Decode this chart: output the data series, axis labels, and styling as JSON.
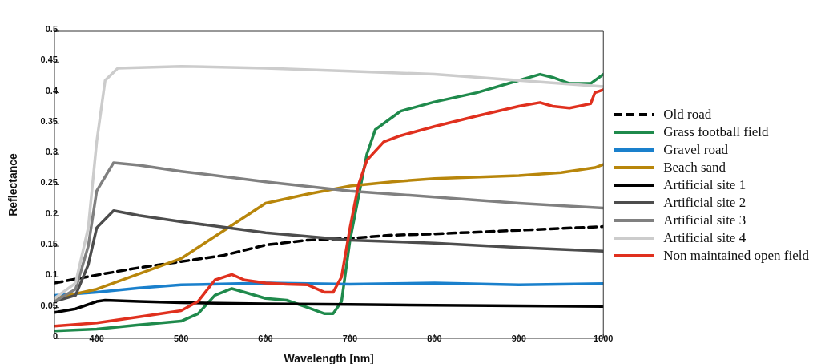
{
  "chart_data": {
    "type": "line",
    "xlabel": "Wavelength [nm]",
    "ylabel": "Reflectance",
    "xlim": [
      350,
      1000
    ],
    "ylim": [
      0,
      0.5
    ],
    "xticks": [
      400,
      500,
      600,
      700,
      800,
      900,
      1000
    ],
    "yticks": [
      0,
      0.05,
      0.1,
      0.15,
      0.2,
      0.25,
      0.3,
      0.35,
      0.4,
      0.45,
      0.5
    ],
    "grid": false,
    "legend": "right",
    "marker": "none",
    "series": [
      {
        "name": "Old road",
        "color": "#000000",
        "line_style": "dashed",
        "x": [
          350,
          400,
          450,
          500,
          550,
          600,
          650,
          700,
          750,
          800,
          900,
          1000
        ],
        "values": [
          0.09,
          0.103,
          0.115,
          0.125,
          0.135,
          0.152,
          0.16,
          0.163,
          0.168,
          0.17,
          0.176,
          0.182
        ]
      },
      {
        "name": "Grass football field",
        "color": "#1f8a4c",
        "x": [
          350,
          400,
          450,
          500,
          520,
          540,
          560,
          575,
          600,
          625,
          650,
          670,
          680,
          690,
          700,
          720,
          730,
          750,
          760,
          800,
          850,
          900,
          925,
          940,
          960,
          985,
          1000
        ],
        "values": [
          0.012,
          0.015,
          0.022,
          0.028,
          0.04,
          0.07,
          0.081,
          0.075,
          0.065,
          0.062,
          0.05,
          0.04,
          0.04,
          0.06,
          0.16,
          0.3,
          0.34,
          0.36,
          0.37,
          0.385,
          0.4,
          0.42,
          0.43,
          0.425,
          0.415,
          0.415,
          0.43
        ]
      },
      {
        "name": "Gravel road",
        "color": "#1a80cc",
        "x": [
          350,
          400,
          450,
          500,
          600,
          700,
          800,
          900,
          1000
        ],
        "values": [
          0.07,
          0.075,
          0.082,
          0.087,
          0.09,
          0.088,
          0.09,
          0.087,
          0.089
        ]
      },
      {
        "name": "Beach sand",
        "color": "#b8860b",
        "x": [
          350,
          400,
          450,
          500,
          550,
          600,
          650,
          700,
          750,
          800,
          900,
          950,
          990,
          1000
        ],
        "values": [
          0.065,
          0.08,
          0.105,
          0.13,
          0.175,
          0.22,
          0.235,
          0.248,
          0.255,
          0.26,
          0.265,
          0.27,
          0.278,
          0.283
        ]
      },
      {
        "name": "Artificial site 1",
        "color": "#000000",
        "x": [
          350,
          375,
          400,
          410,
          450,
          500,
          600,
          700,
          800,
          1000
        ],
        "values": [
          0.042,
          0.048,
          0.06,
          0.062,
          0.06,
          0.058,
          0.056,
          0.055,
          0.054,
          0.052
        ]
      },
      {
        "name": "Artificial site 2",
        "color": "#4d4d4d",
        "x": [
          350,
          375,
          390,
          400,
          420,
          450,
          500,
          600,
          700,
          800,
          900,
          1000
        ],
        "values": [
          0.06,
          0.07,
          0.12,
          0.18,
          0.208,
          0.2,
          0.19,
          0.172,
          0.16,
          0.155,
          0.148,
          0.142
        ]
      },
      {
        "name": "Artificial site 3",
        "color": "#808080",
        "x": [
          350,
          375,
          390,
          400,
          420,
          450,
          500,
          600,
          700,
          800,
          900,
          1000
        ],
        "values": [
          0.06,
          0.08,
          0.15,
          0.24,
          0.286,
          0.282,
          0.272,
          0.255,
          0.24,
          0.23,
          0.22,
          0.212
        ]
      },
      {
        "name": "Artificial site 4",
        "color": "#cccccc",
        "x": [
          350,
          375,
          390,
          400,
          410,
          425,
          500,
          600,
          700,
          800,
          900,
          1000
        ],
        "values": [
          0.065,
          0.09,
          0.18,
          0.32,
          0.42,
          0.44,
          0.443,
          0.44,
          0.435,
          0.43,
          0.42,
          0.41
        ]
      },
      {
        "name": "Non maintained open field",
        "color": "#e0301e",
        "x": [
          350,
          400,
          450,
          500,
          520,
          540,
          560,
          575,
          600,
          625,
          650,
          670,
          680,
          690,
          700,
          710,
          720,
          740,
          760,
          800,
          850,
          900,
          925,
          940,
          960,
          985,
          990,
          1000
        ],
        "values": [
          0.02,
          0.025,
          0.035,
          0.045,
          0.06,
          0.095,
          0.104,
          0.095,
          0.09,
          0.088,
          0.087,
          0.075,
          0.075,
          0.1,
          0.18,
          0.25,
          0.29,
          0.32,
          0.33,
          0.345,
          0.362,
          0.378,
          0.384,
          0.378,
          0.375,
          0.382,
          0.4,
          0.405
        ]
      }
    ]
  }
}
